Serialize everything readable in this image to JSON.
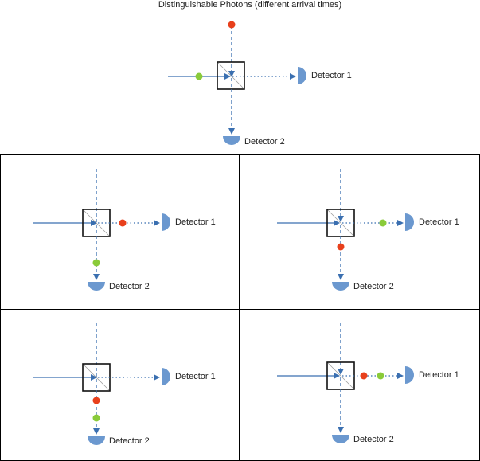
{
  "title": "Distinguishable Photons (different arrival times)",
  "detector1_label": "Detector 1",
  "detector2_label": "Detector 2",
  "colors": {
    "beam": "#3a6fb0",
    "detector": "#6b98cf",
    "photon_red": "#e8401c",
    "photon_green": "#8acb3a",
    "beamsplitter": "#111111",
    "frame": "#000000"
  },
  "panels": [
    {
      "id": "top",
      "photons": [
        "red-top-input",
        "green-left-input"
      ]
    },
    {
      "id": "top-left",
      "photons": [
        "red-to-detector-1",
        "green-to-detector-2"
      ]
    },
    {
      "id": "top-right",
      "photons": [
        "green-to-detector-1",
        "red-to-detector-2"
      ]
    },
    {
      "id": "bottom-left",
      "photons": [
        "red-to-detector-2",
        "green-to-detector-2"
      ]
    },
    {
      "id": "bottom-right",
      "photons": [
        "red-to-detector-1",
        "green-to-detector-1"
      ]
    }
  ]
}
